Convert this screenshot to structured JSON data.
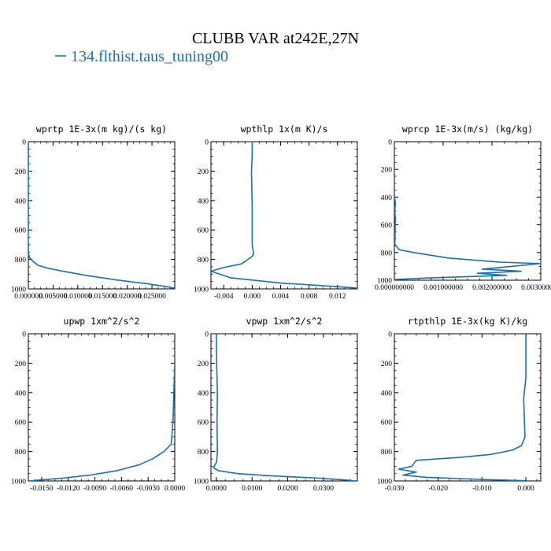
{
  "figure": {
    "title": "CLUBB VAR at242E,27N",
    "legend_label": "134.flthist.taus_tuning00",
    "line_color": "#1f6fa8"
  },
  "chart_data": [
    {
      "type": "line",
      "title": "wprtp  1E-3x(m kg)/(s kg)",
      "x_range": [
        0.0,
        0.0296
      ],
      "y_range": [
        0,
        1000
      ],
      "x_ticks": [
        0.0,
        0.005,
        0.01,
        0.015,
        0.02,
        0.025
      ],
      "x_tick_labels": [
        "0.000000",
        "0.005000",
        "0.010000",
        "0.015000",
        "0.020000",
        "0.025000"
      ],
      "y_ticks": [
        0,
        200,
        400,
        600,
        800,
        1000
      ],
      "y_tick_labels": [
        "0",
        "200",
        "400",
        "600",
        "800",
        "1000"
      ],
      "series": [
        {
          "name": "134.flthist.taus_tuning00",
          "x": [
            0,
            0,
            0,
            0,
            0.0003,
            0.001,
            0.002,
            0.004,
            0.007,
            0.012,
            0.018,
            0.024,
            0.028,
            0.0295
          ],
          "y": [
            0,
            300,
            600,
            760,
            790,
            815,
            840,
            860,
            880,
            910,
            940,
            965,
            985,
            995
          ]
        }
      ]
    },
    {
      "type": "line",
      "title": "wpthlp  1x(m K)/s",
      "x_range": [
        -0.0058,
        0.0148
      ],
      "y_range": [
        0,
        1000
      ],
      "x_ticks": [
        -0.004,
        0.0,
        0.004,
        0.008,
        0.012
      ],
      "x_tick_labels": [
        "-0.004",
        "0.000",
        "0.004",
        "0.008",
        "0.012"
      ],
      "y_ticks": [
        0,
        200,
        400,
        600,
        800,
        1000
      ],
      "y_tick_labels": [
        "0",
        "200",
        "400",
        "600",
        "800",
        "1000"
      ],
      "series": [
        {
          "name": "134.flthist.taus_tuning00",
          "x": [
            0.0,
            0.0,
            -0.0001,
            0.0,
            0.0,
            0.0002,
            0.0,
            -0.0015,
            -0.004,
            -0.0058,
            -0.003,
            0.004,
            0.012,
            0.0148
          ],
          "y": [
            0,
            100,
            200,
            440,
            700,
            760,
            780,
            830,
            855,
            880,
            925,
            960,
            985,
            995
          ]
        }
      ]
    },
    {
      "type": "line",
      "title": "wprcp  1E-3x(m/s) (kg/kg)",
      "x_range": [
        0.0,
        0.003
      ],
      "y_range": [
        0,
        1000
      ],
      "x_ticks": [
        0.0,
        0.001,
        0.002,
        0.003
      ],
      "x_tick_labels": [
        "0.000000000",
        "0.001000000",
        "0.002000000",
        "0.003000000"
      ],
      "y_ticks": [
        0,
        200,
        400,
        600,
        800,
        1000
      ],
      "y_tick_labels": [
        "0",
        "200",
        "400",
        "600",
        "800",
        "1000"
      ],
      "series": [
        {
          "name": "134.flthist.taus_tuning00",
          "x": [
            0,
            0,
            2e-05,
            1e-05,
            2e-05,
            1e-05,
            0.0001,
            0.0004,
            0.0011,
            0.0022,
            0.003,
            0.0018,
            0.0026,
            0.0017,
            0.0023,
            0.0006,
            0
          ],
          "y": [
            0,
            380,
            440,
            500,
            560,
            740,
            780,
            800,
            840,
            870,
            880,
            920,
            935,
            950,
            965,
            985,
            995
          ]
        }
      ]
    },
    {
      "type": "line",
      "title": "upwp  1xm^2/s^2",
      "x_range": [
        -0.0165,
        0.0
      ],
      "y_range": [
        0,
        1000
      ],
      "x_ticks": [
        -0.015,
        -0.012,
        -0.009,
        -0.006,
        -0.003,
        0.0
      ],
      "x_tick_labels": [
        "-0.0150",
        "-0.0120",
        "-0.0090",
        "-0.0060",
        "-0.0030",
        "0.0000"
      ],
      "y_ticks": [
        0,
        200,
        400,
        600,
        800,
        1000
      ],
      "y_tick_labels": [
        "0",
        "200",
        "400",
        "600",
        "800",
        "1000"
      ],
      "series": [
        {
          "name": "134.flthist.taus_tuning00",
          "x": [
            0,
            0,
            -0.0001,
            -0.0002,
            -0.0004,
            -0.0012,
            -0.0025,
            -0.004,
            -0.0065,
            -0.0095,
            -0.0125,
            -0.0155,
            -0.0163
          ],
          "y": [
            0,
            200,
            400,
            600,
            750,
            800,
            850,
            890,
            930,
            960,
            980,
            995,
            1000
          ]
        }
      ]
    },
    {
      "type": "line",
      "title": "vpwp  1xm^2/s^2",
      "x_range": [
        -0.0015,
        0.0395
      ],
      "y_range": [
        0,
        1000
      ],
      "x_ticks": [
        0.0,
        0.01,
        0.02,
        0.03
      ],
      "x_tick_labels": [
        "0.0000",
        "0.0100",
        "0.0200",
        "0.0300"
      ],
      "y_ticks": [
        0,
        200,
        400,
        600,
        800,
        1000
      ],
      "y_tick_labels": [
        "0",
        "200",
        "400",
        "600",
        "800",
        "1000"
      ],
      "series": [
        {
          "name": "134.flthist.taus_tuning00",
          "x": [
            0.0,
            0.0001,
            0.0003,
            0.0002,
            0.0003,
            0.0001,
            -0.0008,
            0.0005,
            0.006,
            0.015,
            0.028,
            0.036,
            0.039
          ],
          "y": [
            0,
            200,
            400,
            600,
            800,
            870,
            910,
            930,
            950,
            965,
            980,
            993,
            1000
          ]
        }
      ]
    },
    {
      "type": "line",
      "title": "rtpthlp  1E-3x(kg K)/kg",
      "x_range": [
        -0.03,
        0.0034
      ],
      "y_range": [
        0,
        1000
      ],
      "x_ticks": [
        -0.03,
        -0.02,
        -0.01,
        0.0
      ],
      "x_tick_labels": [
        "-0.030",
        "-0.020",
        "-0.010",
        "0.000"
      ],
      "y_ticks": [
        0,
        200,
        400,
        600,
        800,
        1000
      ],
      "y_tick_labels": [
        "0",
        "200",
        "400",
        "600",
        "800",
        "1000"
      ],
      "series": [
        {
          "name": "134.flthist.taus_tuning00",
          "x": [
            0,
            0,
            -0.0005,
            -0.0002,
            -0.001,
            -0.003,
            -0.008,
            -0.015,
            -0.025,
            -0.026,
            -0.029,
            -0.025,
            -0.028,
            -0.023,
            -0.01,
            0
          ],
          "y": [
            0,
            300,
            440,
            700,
            760,
            790,
            820,
            840,
            860,
            900,
            920,
            940,
            960,
            975,
            990,
            998
          ]
        }
      ]
    }
  ]
}
